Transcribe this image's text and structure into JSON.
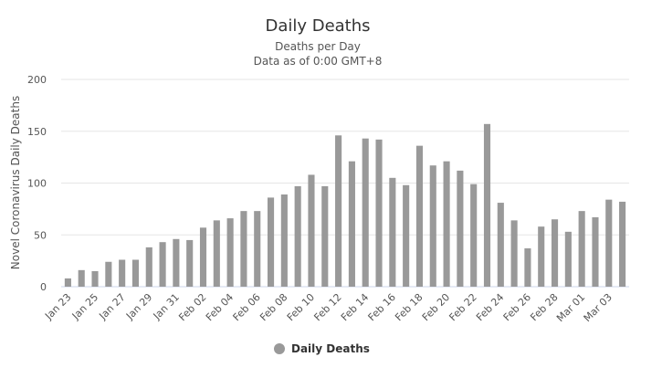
{
  "chart_data": {
    "type": "bar",
    "title": "Daily Deaths",
    "subtitle_lines": [
      "Deaths per Day",
      "Data as of 0:00 GMT+8"
    ],
    "ylabel": "Novel Coronavirus Daily Deaths",
    "xlabel": "",
    "ylim": [
      0,
      200
    ],
    "yticks": [
      0,
      50,
      100,
      150,
      200
    ],
    "grid": true,
    "legend_position": "bottom-center",
    "bar_color": "#999999",
    "categories": [
      "Jan 23",
      "Jan 24",
      "Jan 25",
      "Jan 26",
      "Jan 27",
      "Jan 28",
      "Jan 29",
      "Jan 30",
      "Jan 31",
      "Feb 01",
      "Feb 02",
      "Feb 03",
      "Feb 04",
      "Feb 05",
      "Feb 06",
      "Feb 07",
      "Feb 08",
      "Feb 09",
      "Feb 10",
      "Feb 11",
      "Feb 12",
      "Feb 13",
      "Feb 14",
      "Feb 15",
      "Feb 16",
      "Feb 17",
      "Feb 18",
      "Feb 19",
      "Feb 20",
      "Feb 21",
      "Feb 22",
      "Feb 23",
      "Feb 24",
      "Feb 25",
      "Feb 26",
      "Feb 27",
      "Feb 28",
      "Feb 29",
      "Mar 01",
      "Mar 02",
      "Mar 03",
      "Mar 04"
    ],
    "tick_labels": [
      "Jan 23",
      "Jan 25",
      "Jan 27",
      "Jan 29",
      "Jan 31",
      "Feb 02",
      "Feb 04",
      "Feb 06",
      "Feb 08",
      "Feb 10",
      "Feb 12",
      "Feb 14",
      "Feb 16",
      "Feb 18",
      "Feb 20",
      "Feb 22",
      "Feb 24",
      "Feb 26",
      "Feb 28",
      "Mar 01",
      "Mar 03"
    ],
    "series": [
      {
        "name": "Daily Deaths",
        "values": [
          8,
          16,
          15,
          24,
          26,
          26,
          38,
          43,
          46,
          45,
          57,
          64,
          66,
          73,
          73,
          86,
          89,
          97,
          108,
          97,
          146,
          121,
          143,
          142,
          105,
          98,
          136,
          117,
          121,
          112,
          99,
          157,
          81,
          64,
          37,
          58,
          65,
          53,
          73,
          67,
          84,
          82
        ]
      }
    ]
  }
}
